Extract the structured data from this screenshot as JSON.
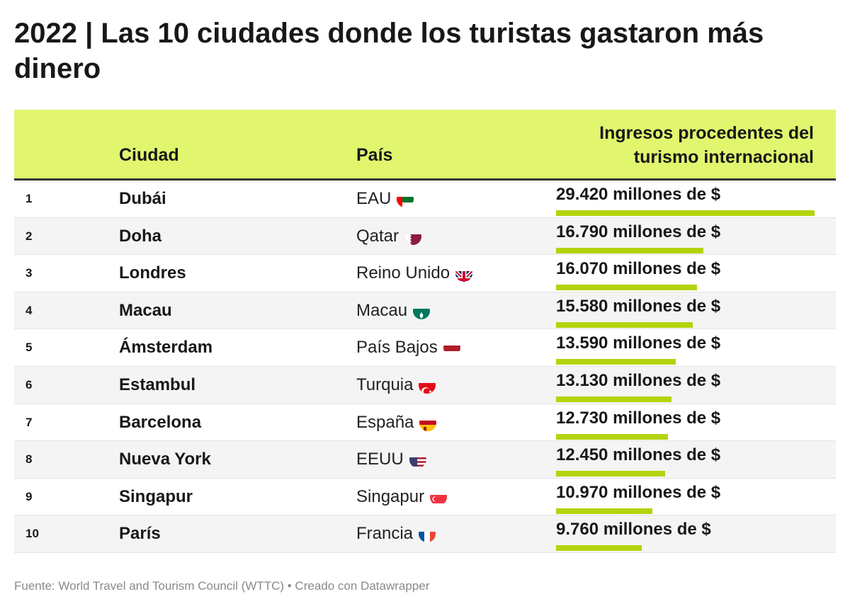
{
  "title": "2022 | Las 10 ciudades donde los turistas gastaron más dinero",
  "columns": {
    "rank": "",
    "city": "Ciudad",
    "country": "País",
    "value": "Ingresos procedentes del\nturismo internacional"
  },
  "footer": "Fuente: World Travel and Tourism Council (WTTC) • Creado con Datawrapper",
  "colors": {
    "header_bg": "#e1f56e",
    "bar": "#b5d30d"
  },
  "chart_data": {
    "type": "table",
    "max_value": 29420,
    "rows": [
      {
        "rank": "1",
        "city": "Dubái",
        "country": "EAU",
        "flag": "uae-flag-icon",
        "value": 29420,
        "label": "29.420 millones de $"
      },
      {
        "rank": "2",
        "city": "Doha",
        "country": "Qatar",
        "flag": "qatar-flag-icon",
        "value": 16790,
        "label": "16.790 millones de $"
      },
      {
        "rank": "3",
        "city": "Londres",
        "country": "Reino Unido",
        "flag": "uk-flag-icon",
        "value": 16070,
        "label": "16.070 millones de $"
      },
      {
        "rank": "4",
        "city": "Macau",
        "country": "Macau",
        "flag": "macau-flag-icon",
        "value": 15580,
        "label": "15.580 millones de $"
      },
      {
        "rank": "5",
        "city": "Ámsterdam",
        "country": "País Bajos",
        "flag": "netherlands-flag-icon",
        "value": 13590,
        "label": "13.590 millones de $"
      },
      {
        "rank": "6",
        "city": "Estambul",
        "country": "Turquia",
        "flag": "turkey-flag-icon",
        "value": 13130,
        "label": "13.130 millones de $"
      },
      {
        "rank": "7",
        "city": "Barcelona",
        "country": "España",
        "flag": "spain-flag-icon",
        "value": 12730,
        "label": "12.730 millones de $"
      },
      {
        "rank": "8",
        "city": "Nueva York",
        "country": "EEUU",
        "flag": "usa-flag-icon",
        "value": 12450,
        "label": "12.450 millones de $"
      },
      {
        "rank": "9",
        "city": "Singapur",
        "country": "Singapur",
        "flag": "singapore-flag-icon",
        "value": 10970,
        "label": "10.970 millones de $"
      },
      {
        "rank": "10",
        "city": "París",
        "country": "Francia",
        "flag": "france-flag-icon",
        "value": 9760,
        "label": "9.760 millones de $"
      }
    ]
  }
}
